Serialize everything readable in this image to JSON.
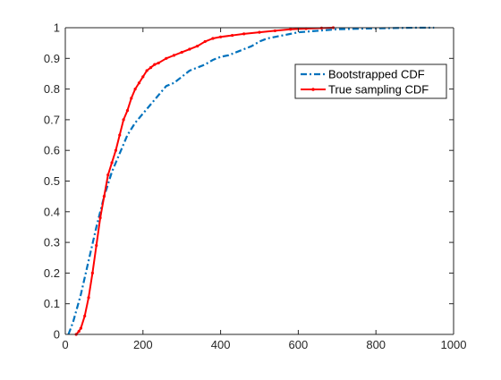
{
  "chart_data": {
    "type": "line",
    "title": "",
    "xlabel": "",
    "ylabel": "",
    "xlim": [
      0,
      1000
    ],
    "ylim": [
      0,
      1
    ],
    "xticks": [
      0,
      200,
      400,
      600,
      800,
      1000
    ],
    "yticks": [
      0,
      0.1,
      0.2,
      0.3,
      0.4,
      0.5,
      0.6,
      0.7,
      0.8,
      0.9,
      1
    ],
    "grid": false,
    "legend_position": "top-right",
    "series": [
      {
        "name": "Bootstrapped CDF",
        "color": "#0072BD",
        "line_style": "dash-dot",
        "x": [
          8,
          20,
          40,
          60,
          80,
          100,
          120,
          140,
          160,
          180,
          200,
          220,
          240,
          260,
          280,
          300,
          320,
          340,
          360,
          380,
          400,
          420,
          440,
          460,
          480,
          500,
          520,
          540,
          560,
          580,
          600,
          650,
          700,
          800,
          900,
          950
        ],
        "y": [
          0.0,
          0.04,
          0.13,
          0.24,
          0.35,
          0.45,
          0.53,
          0.59,
          0.65,
          0.69,
          0.72,
          0.75,
          0.78,
          0.81,
          0.82,
          0.84,
          0.86,
          0.87,
          0.88,
          0.895,
          0.905,
          0.91,
          0.92,
          0.93,
          0.94,
          0.955,
          0.965,
          0.97,
          0.975,
          0.98,
          0.985,
          0.99,
          0.995,
          0.998,
          1.0,
          1.0
        ]
      },
      {
        "name": "True sampling CDF",
        "color": "#FF0000",
        "line_style": "solid-dot",
        "x": [
          28,
          35,
          40,
          50,
          60,
          70,
          80,
          90,
          100,
          110,
          120,
          130,
          140,
          150,
          160,
          170,
          180,
          190,
          200,
          210,
          220,
          230,
          240,
          260,
          280,
          300,
          320,
          340,
          360,
          380,
          400,
          430,
          460,
          500,
          540,
          580,
          620,
          660,
          690
        ],
        "y": [
          0.0,
          0.01,
          0.02,
          0.06,
          0.12,
          0.2,
          0.29,
          0.38,
          0.45,
          0.52,
          0.56,
          0.6,
          0.65,
          0.7,
          0.73,
          0.77,
          0.8,
          0.82,
          0.84,
          0.86,
          0.87,
          0.88,
          0.885,
          0.9,
          0.91,
          0.92,
          0.93,
          0.94,
          0.955,
          0.965,
          0.97,
          0.975,
          0.98,
          0.985,
          0.99,
          0.995,
          0.997,
          0.999,
          1.0
        ]
      }
    ]
  }
}
